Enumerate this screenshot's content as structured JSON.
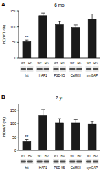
{
  "chart_data": [
    {
      "type": "bar",
      "panel": "A",
      "title": "6 mo",
      "y_label": "HD/WT (%)",
      "categories": [
        "htt",
        "HAP1",
        "PSD-95",
        "CaMKII",
        "synGAP"
      ],
      "values": [
        52,
        135,
        107,
        98,
        125
      ],
      "errors": [
        5,
        8,
        10,
        8,
        15
      ],
      "annotations": [
        "**",
        null,
        null,
        null,
        null
      ],
      "colors": [
        "#1a1a1a",
        "#1a1a1a",
        "#1a1a1a",
        "#1a1a1a",
        "#1a1a1a"
      ],
      "blot_lanes": [
        "WT",
        "HD"
      ],
      "ylim": [
        0,
        150
      ],
      "yticks": [
        0,
        50,
        100,
        150
      ],
      "grid": false
    },
    {
      "type": "bar",
      "panel": "B",
      "title": "2 yr",
      "y_label": "HD/WT (%)",
      "categories": [
        "htt",
        "HAP1",
        "PSD-95",
        "CaMKII",
        "synGAP"
      ],
      "values": [
        35,
        130,
        103,
        103,
        100
      ],
      "errors": [
        5,
        22,
        15,
        12,
        8
      ],
      "annotations": [
        "**",
        null,
        null,
        null,
        null
      ],
      "colors": [
        "#1a1a1a",
        "#1a1a1a",
        "#1a1a1a",
        "#1a1a1a",
        "#1a1a1a"
      ],
      "blot_lanes": [
        "WT",
        "HD"
      ],
      "ylim": [
        0,
        175
      ],
      "yticks": [
        0,
        50,
        100,
        150
      ],
      "grid": false
    }
  ]
}
